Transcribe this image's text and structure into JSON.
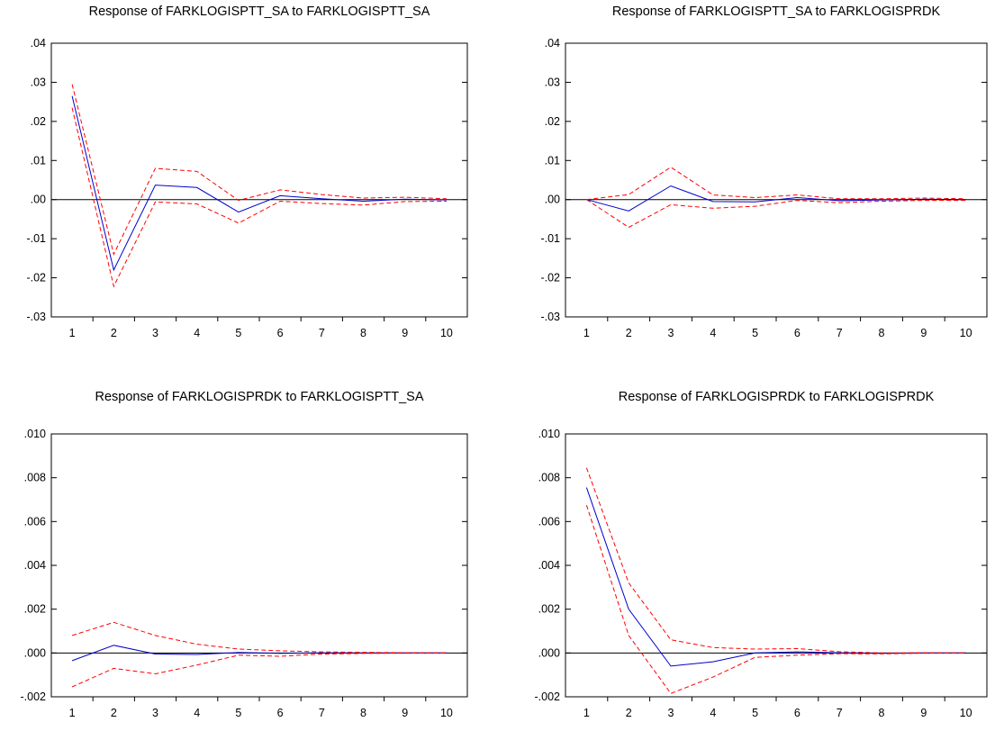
{
  "colors": {
    "response": "#0000cc",
    "band": "#ff0000",
    "zero_line": "#000000"
  },
  "chart_data": [
    {
      "type": "line",
      "title": "Response of FARKLOGISPTT_SA to FARKLOGISPTT_SA",
      "x": [
        1,
        2,
        3,
        4,
        5,
        6,
        7,
        8,
        9,
        10
      ],
      "ylim": [
        -0.03,
        0.04
      ],
      "yticks": [
        0.04,
        0.03,
        0.02,
        0.01,
        0.0,
        -0.01,
        -0.02,
        -0.03
      ],
      "ytick_labels": [
        ".04",
        ".03",
        ".02",
        ".01",
        ".00",
        "-.01",
        "-.02",
        "-.03"
      ],
      "grid": false,
      "series": [
        {
          "role": "response",
          "values": [
            0.0265,
            -0.018,
            0.0037,
            0.0031,
            -0.0032,
            0.001,
            0.0002,
            -0.0004,
            0.0001,
            -0.0001
          ]
        },
        {
          "role": "upper",
          "values": [
            0.0295,
            -0.014,
            0.008,
            0.0072,
            -0.0002,
            0.0025,
            0.0013,
            0.0004,
            0.0006,
            0.0002
          ]
        },
        {
          "role": "lower",
          "values": [
            0.0235,
            -0.0222,
            -0.0006,
            -0.0011,
            -0.006,
            -0.0004,
            -0.001,
            -0.0014,
            -0.0005,
            -0.0004
          ]
        }
      ]
    },
    {
      "type": "line",
      "title": "Response of FARKLOGISPTT_SA to FARKLOGISPRDK",
      "x": [
        1,
        2,
        3,
        4,
        5,
        6,
        7,
        8,
        9,
        10
      ],
      "ylim": [
        -0.03,
        0.04
      ],
      "yticks": [
        0.04,
        0.03,
        0.02,
        0.01,
        0.0,
        -0.01,
        -0.02,
        -0.03
      ],
      "ytick_labels": [
        ".04",
        ".03",
        ".02",
        ".01",
        ".00",
        "-.01",
        "-.02",
        "-.03"
      ],
      "grid": false,
      "series": [
        {
          "role": "response",
          "values": [
            0.0,
            -0.0029,
            0.0035,
            -0.0005,
            -0.0006,
            0.0005,
            -0.0003,
            -0.0001,
            0.0001,
            0.0
          ]
        },
        {
          "role": "upper",
          "values": [
            0.0,
            0.0013,
            0.0083,
            0.0012,
            0.0005,
            0.0012,
            0.0002,
            0.0002,
            0.0004,
            0.0002
          ]
        },
        {
          "role": "lower",
          "values": [
            0.0,
            -0.0071,
            -0.0013,
            -0.0022,
            -0.0017,
            -0.0002,
            -0.0008,
            -0.0004,
            -0.0002,
            -0.0002
          ]
        }
      ]
    },
    {
      "type": "line",
      "title": "Response of FARKLOGISPRDK to FARKLOGISPTT_SA",
      "x": [
        1,
        2,
        3,
        4,
        5,
        6,
        7,
        8,
        9,
        10
      ],
      "ylim": [
        -0.002,
        0.01
      ],
      "yticks": [
        0.01,
        0.008,
        0.006,
        0.004,
        0.002,
        0.0,
        -0.002
      ],
      "ytick_labels": [
        ".010",
        ".008",
        ".006",
        ".004",
        ".002",
        ".000",
        "-.002"
      ],
      "grid": false,
      "series": [
        {
          "role": "response",
          "values": [
            -0.00035,
            0.00035,
            -5e-05,
            -7e-05,
            2e-05,
            -2e-05,
            0.0,
            0.0,
            0.0,
            0.0
          ]
        },
        {
          "role": "upper",
          "values": [
            0.0008,
            0.0014,
            0.0008,
            0.0004,
            0.00018,
            0.0001,
            5e-05,
            3e-05,
            1e-05,
            0.0
          ]
        },
        {
          "role": "lower",
          "values": [
            -0.00155,
            -0.0007,
            -0.00095,
            -0.00055,
            -0.0001,
            -0.00015,
            -5e-05,
            -2e-05,
            -1e-05,
            0.0
          ]
        }
      ]
    },
    {
      "type": "line",
      "title": "Response of FARKLOGISPRDK to FARKLOGISPRDK",
      "x": [
        1,
        2,
        3,
        4,
        5,
        6,
        7,
        8,
        9,
        10
      ],
      "ylim": [
        -0.002,
        0.01
      ],
      "yticks": [
        0.01,
        0.008,
        0.006,
        0.004,
        0.002,
        0.0,
        -0.002
      ],
      "ytick_labels": [
        ".010",
        ".008",
        ".006",
        ".004",
        ".002",
        ".000",
        "-.002"
      ],
      "grid": false,
      "series": [
        {
          "role": "response",
          "values": [
            0.00755,
            0.002,
            -0.0006,
            -0.0004,
            0.0,
            5e-05,
            1e-05,
            -2e-05,
            0.0,
            0.0
          ]
        },
        {
          "role": "upper",
          "values": [
            0.00845,
            0.0032,
            0.0006,
            0.00025,
            0.00018,
            0.0002,
            6e-05,
            0.0,
            1e-05,
            0.0
          ]
        },
        {
          "role": "lower",
          "values": [
            0.00675,
            0.0008,
            -0.00185,
            -0.0011,
            -0.0002,
            -0.0001,
            -3e-05,
            -4e-05,
            -1e-05,
            0.0
          ]
        }
      ]
    }
  ]
}
